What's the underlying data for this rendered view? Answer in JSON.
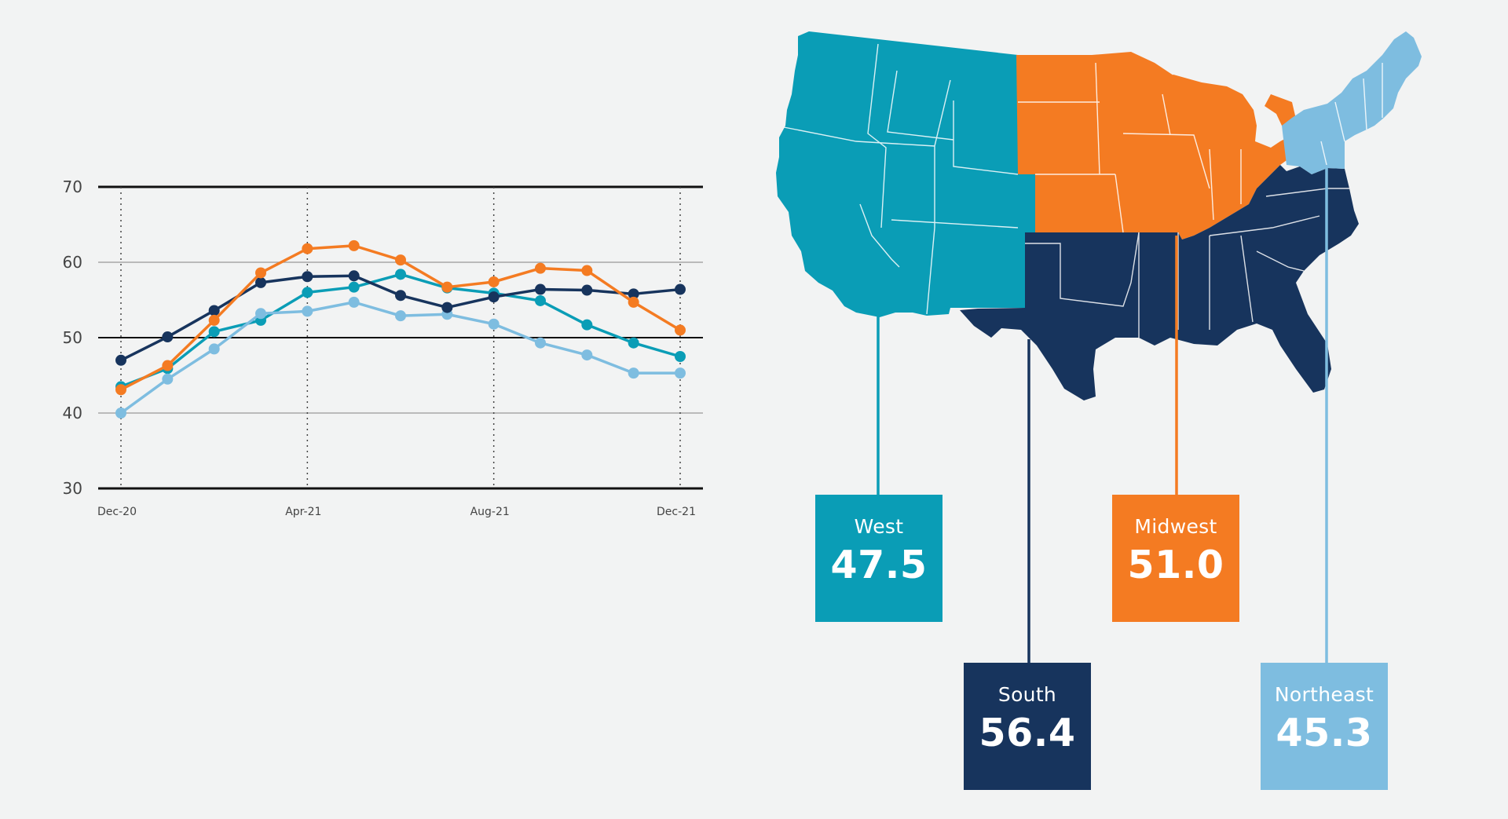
{
  "colors": {
    "west": "#0a9db6",
    "midwest": "#f47b22",
    "south": "#17345d",
    "northeast": "#7ebde0",
    "background": "#f2f3f3"
  },
  "chart_data": {
    "type": "line",
    "title": "",
    "xlabel": "",
    "ylabel": "",
    "x": [
      "Dec-20",
      "Jan-21",
      "Feb-21",
      "Mar-21",
      "Apr-21",
      "May-21",
      "Jun-21",
      "Jul-21",
      "Aug-21",
      "Sep-21",
      "Oct-21",
      "Nov-21",
      "Dec-21"
    ],
    "x_tick_labels": [
      "Dec-20",
      "Apr-21",
      "Aug-21",
      "Dec-21"
    ],
    "y_ticks": [
      30,
      40,
      50,
      60,
      70
    ],
    "ylim": [
      30,
      70
    ],
    "grid": true,
    "legend": "none",
    "series": [
      {
        "name": "",
        "color": "#0a9db6",
        "values": [
          43.5,
          45.9,
          50.8,
          52.3,
          56.0,
          56.7,
          58.4,
          56.6,
          55.9,
          54.9,
          51.7,
          49.3,
          47.5
        ]
      },
      {
        "name": "",
        "color": "#7ebde0",
        "values": [
          40.0,
          44.5,
          48.5,
          53.2,
          53.5,
          54.7,
          52.9,
          53.1,
          51.8,
          49.3,
          47.7,
          45.3,
          45.3
        ]
      },
      {
        "name": "",
        "color": "#17345d",
        "values": [
          47.0,
          50.1,
          53.6,
          57.3,
          58.1,
          58.2,
          55.6,
          54.0,
          55.4,
          56.4,
          56.3,
          55.8,
          56.4
        ]
      },
      {
        "name": "",
        "color": "#f47b22",
        "values": [
          43.1,
          46.3,
          52.3,
          58.6,
          61.8,
          62.2,
          60.3,
          56.7,
          57.4,
          59.2,
          58.9,
          54.7,
          51.0
        ]
      }
    ]
  },
  "regions": {
    "west": {
      "name": "West",
      "value": "47.5"
    },
    "south": {
      "name": "South",
      "value": "56.4"
    },
    "midwest": {
      "name": "Midwest",
      "value": "51.0"
    },
    "northeast": {
      "name": "Northeast",
      "value": "45.3"
    }
  }
}
